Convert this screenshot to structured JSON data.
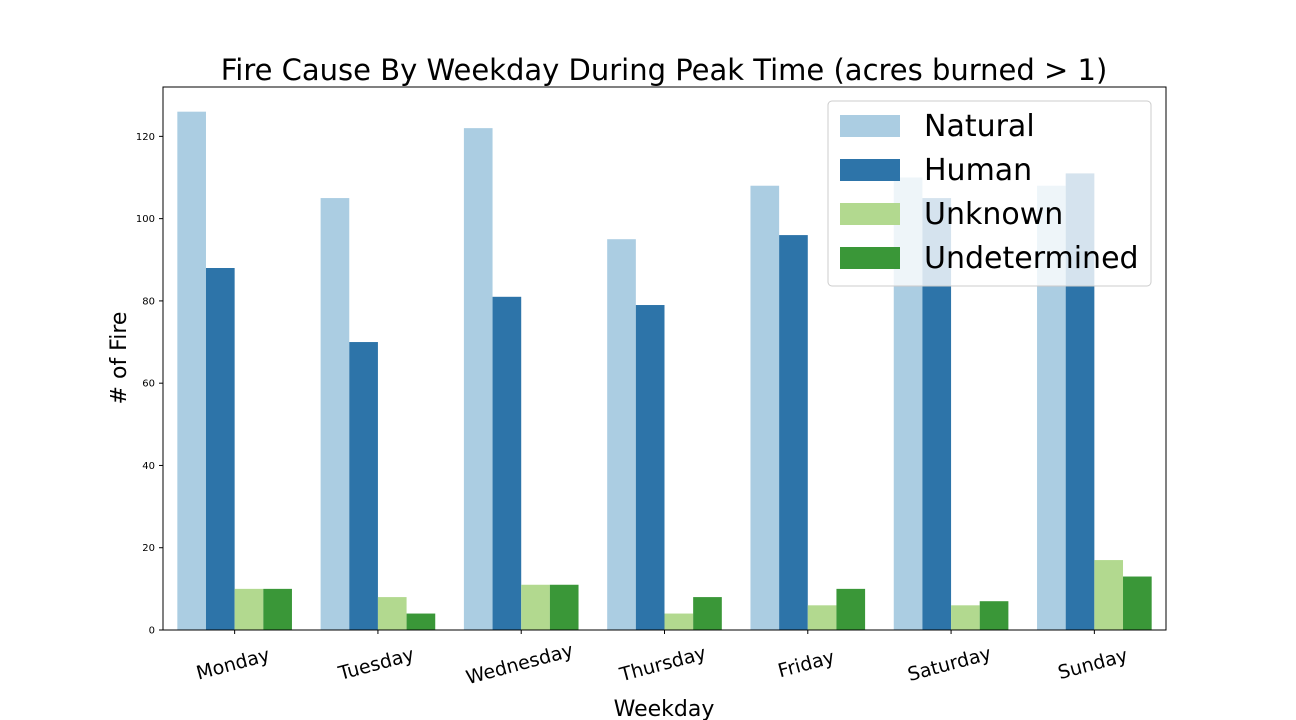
{
  "chart_data": {
    "type": "bar",
    "title": "Fire Cause By Weekday During Peak Time (acres burned > 1)",
    "xlabel": "Weekday",
    "ylabel": "# of Fire",
    "categories": [
      "Monday",
      "Tuesday",
      "Wednesday",
      "Thursday",
      "Friday",
      "Saturday",
      "Sunday"
    ],
    "ylim": [
      0,
      132
    ],
    "yticks": [
      0,
      20,
      40,
      60,
      80,
      100,
      120
    ],
    "grid": false,
    "legend_position": "top-right",
    "series": [
      {
        "name": "Natural",
        "color": "#abcde2",
        "values": [
          126,
          105,
          122,
          95,
          108,
          110,
          108
        ]
      },
      {
        "name": "Human",
        "color": "#2d74a9",
        "values": [
          88,
          70,
          81,
          79,
          96,
          105,
          111
        ]
      },
      {
        "name": "Unknown",
        "color": "#b2d98f",
        "values": [
          10,
          8,
          11,
          4,
          6,
          6,
          17
        ]
      },
      {
        "name": "Undetermined",
        "color": "#3a9738",
        "values": [
          10,
          4,
          11,
          8,
          10,
          7,
          13
        ]
      }
    ]
  }
}
